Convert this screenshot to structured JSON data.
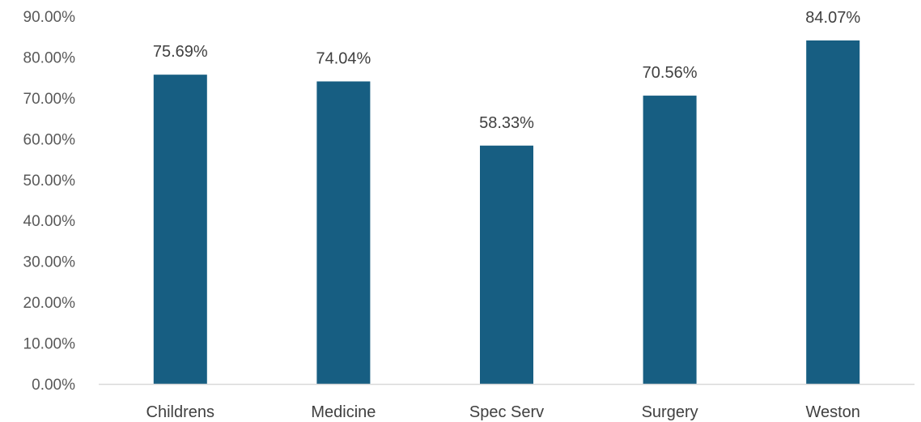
{
  "chart_data": {
    "type": "bar",
    "title": "",
    "xlabel": "",
    "ylabel": "",
    "categories": [
      "Childrens",
      "Medicine",
      "Spec Serv",
      "Surgery",
      "Weston"
    ],
    "values": [
      75.69,
      74.04,
      58.33,
      70.56,
      84.07
    ],
    "data_labels": [
      "75.69%",
      "74.04%",
      "58.33%",
      "70.56%",
      "84.07%"
    ],
    "ylim": [
      0,
      90
    ],
    "yticks": [
      0,
      10,
      20,
      30,
      40,
      50,
      60,
      70,
      80,
      90
    ],
    "ytick_labels": [
      "0.00%",
      "10.00%",
      "20.00%",
      "30.00%",
      "40.00%",
      "50.00%",
      "60.00%",
      "70.00%",
      "80.00%",
      "90.00%"
    ],
    "grid": false,
    "legend": "none",
    "colors": {
      "bar": "#175E82",
      "axis": "#D9D9D9",
      "tick_text": "#595959",
      "label_text": "#404040"
    }
  }
}
